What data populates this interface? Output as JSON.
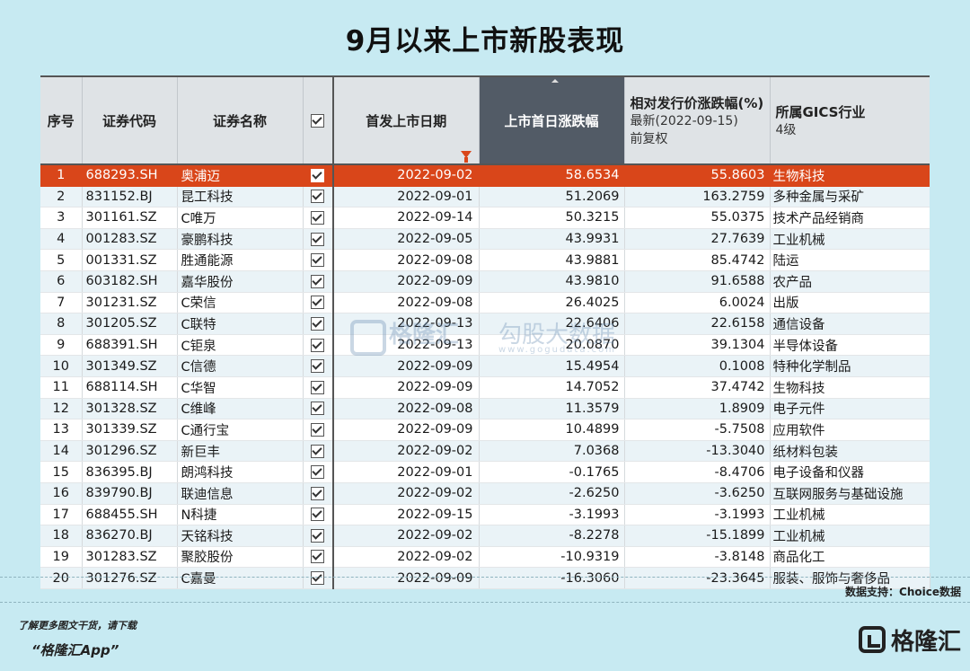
{
  "title": "9月以来上市新股表现",
  "columns": {
    "idx": "序号",
    "code": "证券代码",
    "name": "证券名称",
    "date": "首发上市日期",
    "first_day": "上市首日涨跌幅",
    "rel_main": "相对发行价涨跌幅(%)",
    "rel_sub1": "最新(2022-09-15)",
    "rel_sub2": "前复权",
    "ind_main": "所属GICS行业",
    "ind_sub": "4级"
  },
  "rows": [
    {
      "idx": "1",
      "code": "688293.SH",
      "name": "奥浦迈",
      "date": "2022-09-02",
      "first": "58.6534",
      "rel": "55.8603",
      "ind": "生物科技"
    },
    {
      "idx": "2",
      "code": "831152.BJ",
      "name": "昆工科技",
      "date": "2022-09-01",
      "first": "51.2069",
      "rel": "163.2759",
      "ind": "多种金属与采矿"
    },
    {
      "idx": "3",
      "code": "301161.SZ",
      "name": "C唯万",
      "date": "2022-09-14",
      "first": "50.3215",
      "rel": "55.0375",
      "ind": "技术产品经销商"
    },
    {
      "idx": "4",
      "code": "001283.SZ",
      "name": "豪鹏科技",
      "date": "2022-09-05",
      "first": "43.9931",
      "rel": "27.7639",
      "ind": "工业机械"
    },
    {
      "idx": "5",
      "code": "001331.SZ",
      "name": "胜通能源",
      "date": "2022-09-08",
      "first": "43.9881",
      "rel": "85.4742",
      "ind": "陆运"
    },
    {
      "idx": "6",
      "code": "603182.SH",
      "name": "嘉华股份",
      "date": "2022-09-09",
      "first": "43.9810",
      "rel": "91.6588",
      "ind": "农产品"
    },
    {
      "idx": "7",
      "code": "301231.SZ",
      "name": "C荣信",
      "date": "2022-09-08",
      "first": "26.4025",
      "rel": "6.0024",
      "ind": "出版"
    },
    {
      "idx": "8",
      "code": "301205.SZ",
      "name": "C联特",
      "date": "2022-09-13",
      "first": "22.6406",
      "rel": "22.6158",
      "ind": "通信设备"
    },
    {
      "idx": "9",
      "code": "688391.SH",
      "name": "C钜泉",
      "date": "2022-09-13",
      "first": "20.0870",
      "rel": "39.1304",
      "ind": "半导体设备"
    },
    {
      "idx": "10",
      "code": "301349.SZ",
      "name": "C信德",
      "date": "2022-09-09",
      "first": "15.4954",
      "rel": "0.1008",
      "ind": "特种化学制品"
    },
    {
      "idx": "11",
      "code": "688114.SH",
      "name": "C华智",
      "date": "2022-09-09",
      "first": "14.7052",
      "rel": "37.4742",
      "ind": "生物科技"
    },
    {
      "idx": "12",
      "code": "301328.SZ",
      "name": "C维峰",
      "date": "2022-09-08",
      "first": "11.3579",
      "rel": "1.8909",
      "ind": "电子元件"
    },
    {
      "idx": "13",
      "code": "301339.SZ",
      "name": "C通行宝",
      "date": "2022-09-09",
      "first": "10.4899",
      "rel": "-5.7508",
      "ind": "应用软件"
    },
    {
      "idx": "14",
      "code": "301296.SZ",
      "name": "新巨丰",
      "date": "2022-09-02",
      "first": "7.0368",
      "rel": "-13.3040",
      "ind": "纸材料包装"
    },
    {
      "idx": "15",
      "code": "836395.BJ",
      "name": "朗鸿科技",
      "date": "2022-09-01",
      "first": "-0.1765",
      "rel": "-8.4706",
      "ind": "电子设备和仪器"
    },
    {
      "idx": "16",
      "code": "839790.BJ",
      "name": "联迪信息",
      "date": "2022-09-02",
      "first": "-2.6250",
      "rel": "-3.6250",
      "ind": "互联网服务与基础设施"
    },
    {
      "idx": "17",
      "code": "688455.SH",
      "name": "N科捷",
      "date": "2022-09-15",
      "first": "-3.1993",
      "rel": "-3.1993",
      "ind": "工业机械"
    },
    {
      "idx": "18",
      "code": "836270.BJ",
      "name": "天铭科技",
      "date": "2022-09-02",
      "first": "-8.2278",
      "rel": "-15.1899",
      "ind": "工业机械"
    },
    {
      "idx": "19",
      "code": "301283.SZ",
      "name": "聚胶股份",
      "date": "2022-09-02",
      "first": "-10.9319",
      "rel": "-3.8148",
      "ind": "商品化工"
    },
    {
      "idx": "20",
      "code": "301276.SZ",
      "name": "C嘉曼",
      "date": "2022-09-09",
      "first": "-16.3060",
      "rel": "-23.3645",
      "ind": "服装、服饰与奢侈品"
    }
  ],
  "watermark": {
    "brand": "格隆汇",
    "text": "勾股大数据",
    "url": "www.gogudata.com"
  },
  "source": "数据支持：Choice数据",
  "promo_line1": "了解更多图文干货，请下载",
  "promo_line2": "“格隆汇App”",
  "brand": "格隆汇",
  "colors": {
    "background": "#c7eaf2",
    "highlight": "#d9461a",
    "header_dark": "#525b66"
  }
}
